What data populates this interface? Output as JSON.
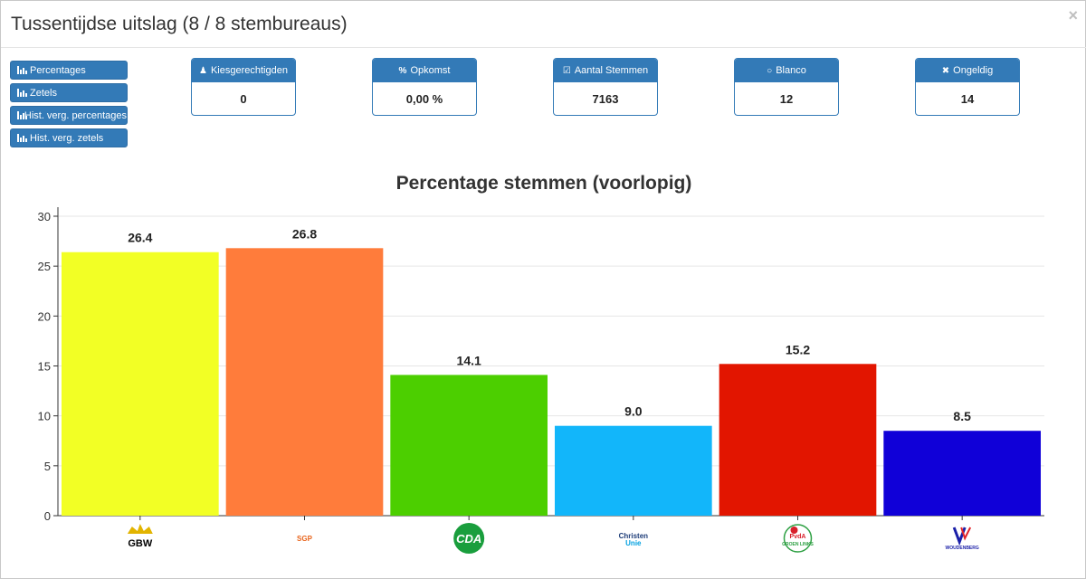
{
  "modal": {
    "title": "Tussentijdse uitslag (8 / 8 stembureaus)",
    "close_label": "×"
  },
  "side_buttons": [
    {
      "label": "Percentages",
      "icon": "bar-chart-icon"
    },
    {
      "label": "Zetels",
      "icon": "bar-chart-icon"
    },
    {
      "label": "Hist. verg. percentages",
      "icon": "bar-chart-icon"
    },
    {
      "label": "Hist. verg. zetels",
      "icon": "bar-chart-icon"
    }
  ],
  "stats": [
    {
      "label": "Kiesgerechtigden",
      "icon": "users-icon",
      "value": "0"
    },
    {
      "label": "Opkomst",
      "icon": "percent-icon",
      "value": "0,00 %"
    },
    {
      "label": "Aantal Stemmen",
      "icon": "check-square-icon",
      "value": "7163"
    },
    {
      "label": "Blanco",
      "icon": "circle-icon",
      "value": "12"
    },
    {
      "label": "Ongeldig",
      "icon": "x-icon",
      "value": "14"
    }
  ],
  "colors": {
    "primary": "#337ab7",
    "gridline": "#e6e6e6"
  },
  "chart_data": {
    "type": "bar",
    "title": "Percentage stemmen (voorlopig)",
    "xlabel": "",
    "ylabel": "",
    "ylim": [
      0,
      30
    ],
    "yticks": [
      0,
      5,
      10,
      15,
      20,
      25,
      30
    ],
    "grid": true,
    "categories": [
      "GBW",
      "SGP",
      "CDA",
      "ChristenUnie",
      "PvdA GroenLinks",
      "Woudenberg"
    ],
    "category_logos": [
      {
        "text": "GBW",
        "color": "#000000",
        "accent": "#e2b400"
      },
      {
        "text": "SGP",
        "color": "#e8641b",
        "accent": "#e8641b"
      },
      {
        "text": "CDA",
        "color": "#ffffff",
        "accent": "#1a9e3d"
      },
      {
        "text": "Christen Unie",
        "color": "#1d3c78",
        "accent": "#00a0e0"
      },
      {
        "text": "PvdA GROEN LINKS",
        "color": "#d81f2a",
        "accent": "#2ea043"
      },
      {
        "text": "WOUDENBERG",
        "color": "#1a1fa8",
        "accent": "#e2232a"
      }
    ],
    "values": [
      26.4,
      26.8,
      14.1,
      9.0,
      15.2,
      8.5
    ],
    "value_labels": [
      "26.4",
      "26.8",
      "14.1",
      "9.0",
      "15.2",
      "8.5"
    ],
    "bar_colors": [
      "#f2ff25",
      "#ff7c3b",
      "#4ccf00",
      "#12b6fa",
      "#e21500",
      "#1000d8"
    ]
  }
}
